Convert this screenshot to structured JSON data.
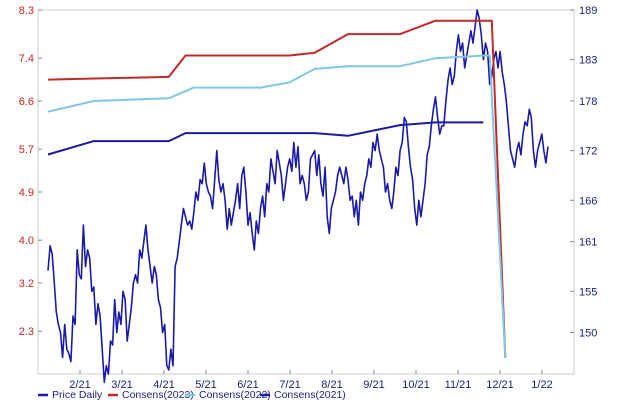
{
  "chart_data": {
    "type": "line",
    "title": "",
    "x_tick_labels": [
      "2/21",
      "3/21",
      "4/21",
      "5/21",
      "6/21",
      "7/21",
      "8/21",
      "9/21",
      "10/21",
      "11/21",
      "12/21",
      "1/22"
    ],
    "left_axis": {
      "ticks": [
        "8.3",
        "7.4",
        "6.6",
        "5.7",
        "4.9",
        "4.0",
        "3.2",
        "2.3"
      ],
      "ylim": [
        1.5,
        8.3
      ]
    },
    "right_axis": {
      "ticks": [
        "189",
        "183",
        "178",
        "172",
        "166",
        "161",
        "155",
        "150"
      ],
      "ylim": [
        145,
        189
      ]
    },
    "grid": false,
    "legend_position": "bottom",
    "series": [
      {
        "name": "Price Daily",
        "axis": "right",
        "color": "#1a1aa6",
        "points": [
          [
            0.0,
            157.5
          ],
          [
            0.01,
            160.5
          ],
          [
            0.02,
            159.5
          ],
          [
            0.03,
            156
          ],
          [
            0.04,
            152.5
          ],
          [
            0.05,
            151
          ],
          [
            0.06,
            150
          ],
          [
            0.07,
            147
          ],
          [
            0.08,
            151
          ],
          [
            0.09,
            148
          ],
          [
            0.1,
            147.5
          ],
          [
            0.11,
            146.5
          ],
          [
            0.12,
            152
          ],
          [
            0.13,
            151
          ],
          [
            0.14,
            160
          ],
          [
            0.15,
            157
          ],
          [
            0.16,
            156.5
          ],
          [
            0.17,
            163
          ],
          [
            0.18,
            158
          ],
          [
            0.19,
            160
          ],
          [
            0.2,
            159
          ],
          [
            0.21,
            155
          ],
          [
            0.22,
            155.5
          ],
          [
            0.23,
            151
          ],
          [
            0.24,
            153.5
          ],
          [
            0.25,
            152
          ],
          [
            0.26,
            148
          ],
          [
            0.27,
            144
          ],
          [
            0.28,
            146
          ],
          [
            0.29,
            145
          ],
          [
            0.3,
            149
          ],
          [
            0.31,
            148.5
          ],
          [
            0.32,
            154
          ],
          [
            0.33,
            150
          ],
          [
            0.34,
            152.5
          ],
          [
            0.35,
            151
          ],
          [
            0.36,
            155
          ],
          [
            0.37,
            154
          ],
          [
            0.38,
            149
          ],
          [
            0.39,
            151
          ],
          [
            0.4,
            153
          ],
          [
            0.41,
            156
          ],
          [
            0.42,
            157
          ],
          [
            0.43,
            156
          ],
          [
            0.44,
            160
          ],
          [
            0.45,
            159
          ],
          [
            0.46,
            161
          ],
          [
            0.47,
            163
          ],
          [
            0.48,
            160
          ],
          [
            0.49,
            158
          ],
          [
            0.5,
            156
          ],
          [
            0.51,
            158
          ],
          [
            0.52,
            157
          ],
          [
            0.53,
            154
          ],
          [
            0.54,
            153
          ],
          [
            0.55,
            150
          ],
          [
            0.56,
            151
          ],
          [
            0.57,
            146
          ],
          [
            0.58,
            145.5
          ],
          [
            0.59,
            148
          ],
          [
            0.6,
            146
          ],
          [
            0.61,
            158
          ],
          [
            0.62,
            159
          ],
          [
            0.63,
            161
          ],
          [
            0.64,
            163
          ],
          [
            0.65,
            165
          ],
          [
            0.66,
            164
          ],
          [
            0.67,
            163
          ],
          [
            0.68,
            163.5
          ],
          [
            0.69,
            162.5
          ],
          [
            0.7,
            164.5
          ],
          [
            0.71,
            167
          ],
          [
            0.72,
            166
          ],
          [
            0.73,
            168.5
          ],
          [
            0.74,
            168
          ],
          [
            0.75,
            170.5
          ],
          [
            0.76,
            168
          ],
          [
            0.77,
            167
          ],
          [
            0.78,
            166.5
          ],
          [
            0.79,
            165
          ],
          [
            0.8,
            168.5
          ],
          [
            0.81,
            172
          ],
          [
            0.82,
            168.5
          ],
          [
            0.83,
            167
          ],
          [
            0.84,
            168
          ],
          [
            0.85,
            166
          ],
          [
            0.86,
            162.5
          ],
          [
            0.87,
            165
          ],
          [
            0.88,
            163
          ],
          [
            0.89,
            164.5
          ],
          [
            0.9,
            166
          ],
          [
            0.91,
            168
          ],
          [
            0.92,
            165
          ],
          [
            0.93,
            169
          ],
          [
            0.94,
            170
          ],
          [
            0.95,
            167
          ],
          [
            0.96,
            163
          ],
          [
            0.97,
            164.5
          ],
          [
            0.98,
            162
          ],
          [
            0.99,
            160
          ],
          [
            1.0,
            163.5
          ],
          [
            1.01,
            162
          ],
          [
            1.02,
            165
          ],
          [
            1.03,
            166.5
          ],
          [
            1.04,
            164
          ],
          [
            1.05,
            168
          ],
          [
            1.06,
            167
          ],
          [
            1.07,
            171
          ],
          [
            1.08,
            169.5
          ],
          [
            1.09,
            168
          ],
          [
            1.1,
            172
          ],
          [
            1.11,
            170.5
          ],
          [
            1.12,
            169
          ],
          [
            1.13,
            166
          ],
          [
            1.14,
            168
          ],
          [
            1.15,
            170
          ],
          [
            1.16,
            171
          ],
          [
            1.17,
            169.5
          ],
          [
            1.18,
            173
          ],
          [
            1.19,
            170
          ],
          [
            1.2,
            172.5
          ],
          [
            1.21,
            168
          ],
          [
            1.22,
            169
          ],
          [
            1.23,
            168
          ],
          [
            1.24,
            166
          ],
          [
            1.25,
            167
          ],
          [
            1.26,
            171
          ],
          [
            1.27,
            171.5
          ],
          [
            1.28,
            172
          ],
          [
            1.29,
            169
          ],
          [
            1.3,
            171.5
          ],
          [
            1.31,
            168
          ],
          [
            1.32,
            166.5
          ],
          [
            1.33,
            170
          ],
          [
            1.34,
            164
          ],
          [
            1.35,
            162
          ],
          [
            1.36,
            165
          ],
          [
            1.37,
            166
          ],
          [
            1.38,
            167
          ],
          [
            1.39,
            169
          ],
          [
            1.4,
            170
          ],
          [
            1.41,
            169
          ],
          [
            1.42,
            168
          ],
          [
            1.43,
            170
          ],
          [
            1.44,
            168.5
          ],
          [
            1.45,
            166
          ],
          [
            1.46,
            166.5
          ],
          [
            1.47,
            164
          ],
          [
            1.48,
            166
          ],
          [
            1.49,
            163
          ],
          [
            1.5,
            167
          ],
          [
            1.51,
            166
          ],
          [
            1.52,
            168
          ],
          [
            1.53,
            169
          ],
          [
            1.54,
            171
          ],
          [
            1.55,
            170
          ],
          [
            1.56,
            173
          ],
          [
            1.57,
            172
          ],
          [
            1.58,
            174
          ],
          [
            1.59,
            172
          ],
          [
            1.6,
            171
          ],
          [
            1.61,
            170
          ],
          [
            1.62,
            167
          ],
          [
            1.63,
            168
          ],
          [
            1.64,
            166
          ],
          [
            1.65,
            165
          ],
          [
            1.66,
            167
          ],
          [
            1.67,
            170
          ],
          [
            1.68,
            169
          ],
          [
            1.69,
            172
          ],
          [
            1.7,
            173
          ],
          [
            1.71,
            176
          ],
          [
            1.72,
            175.5
          ],
          [
            1.73,
            172.5
          ],
          [
            1.74,
            170
          ],
          [
            1.75,
            168.5
          ],
          [
            1.76,
            165
          ],
          [
            1.77,
            163
          ],
          [
            1.78,
            166
          ],
          [
            1.79,
            164
          ],
          [
            1.8,
            166
          ],
          [
            1.81,
            168
          ],
          [
            1.82,
            171.5
          ],
          [
            1.83,
            172.5
          ],
          [
            1.84,
            175
          ],
          [
            1.85,
            177
          ],
          [
            1.86,
            178.5
          ],
          [
            1.87,
            176
          ],
          [
            1.88,
            174
          ],
          [
            1.89,
            175
          ],
          [
            1.9,
            175
          ],
          [
            1.91,
            178
          ],
          [
            1.92,
            180.5
          ],
          [
            1.93,
            182
          ],
          [
            1.94,
            180
          ],
          [
            1.95,
            181
          ],
          [
            1.96,
            184
          ],
          [
            1.97,
            186
          ],
          [
            1.98,
            184
          ],
          [
            1.99,
            185
          ],
          [
            2.0,
            182
          ],
          [
            2.01,
            183.5
          ],
          [
            2.02,
            185
          ],
          [
            2.03,
            186.5
          ],
          [
            2.04,
            185
          ],
          [
            2.05,
            187
          ],
          [
            2.06,
            189
          ],
          [
            2.07,
            188
          ],
          [
            2.08,
            186
          ],
          [
            2.09,
            183
          ],
          [
            2.1,
            185
          ],
          [
            2.11,
            184
          ],
          [
            2.12,
            180
          ],
          [
            2.13,
            181
          ],
          [
            2.14,
            183
          ],
          [
            2.15,
            184
          ],
          [
            2.16,
            182
          ],
          [
            2.17,
            184
          ],
          [
            2.18,
            181.5
          ],
          [
            2.19,
            180
          ],
          [
            2.2,
            178
          ],
          [
            2.21,
            175
          ],
          [
            2.22,
            172
          ],
          [
            2.23,
            171
          ],
          [
            2.24,
            170
          ],
          [
            2.25,
            172
          ],
          [
            2.26,
            173
          ],
          [
            2.27,
            171.5
          ],
          [
            2.28,
            174
          ],
          [
            2.29,
            175.5
          ],
          [
            2.3,
            175
          ],
          [
            2.31,
            177
          ],
          [
            2.32,
            176
          ],
          [
            2.33,
            172
          ],
          [
            2.34,
            170
          ],
          [
            2.35,
            172
          ],
          [
            2.36,
            173
          ],
          [
            2.37,
            174
          ],
          [
            2.38,
            172
          ],
          [
            2.39,
            170.5
          ],
          [
            2.4,
            172.5
          ]
        ]
      },
      {
        "name": "Consens(2023)",
        "axis": "left",
        "color": "#c62828",
        "points": [
          [
            0,
            7.0
          ],
          [
            0.58,
            7.05
          ],
          [
            0.66,
            7.45
          ],
          [
            1.16,
            7.45
          ],
          [
            1.28,
            7.5
          ],
          [
            1.44,
            7.85
          ],
          [
            1.69,
            7.85
          ],
          [
            1.86,
            8.1
          ],
          [
            2.08,
            8.1
          ],
          [
            2.13,
            8.1
          ],
          [
            2.195,
            1.8
          ]
        ]
      },
      {
        "name": "Consens(2022)",
        "axis": "left",
        "color": "#7ec8e3",
        "points": [
          [
            0,
            6.4
          ],
          [
            0.22,
            6.6
          ],
          [
            0.58,
            6.65
          ],
          [
            0.7,
            6.85
          ],
          [
            1.02,
            6.85
          ],
          [
            1.16,
            6.95
          ],
          [
            1.28,
            7.2
          ],
          [
            1.44,
            7.25
          ],
          [
            1.69,
            7.25
          ],
          [
            1.86,
            7.4
          ],
          [
            2.1,
            7.45
          ],
          [
            2.12,
            7.45
          ],
          [
            2.195,
            1.8
          ]
        ]
      },
      {
        "name": "Consens(2021)",
        "axis": "left",
        "color": "#1a1aa6",
        "points": [
          [
            0,
            5.6
          ],
          [
            0.22,
            5.85
          ],
          [
            0.58,
            5.85
          ],
          [
            0.66,
            6.0
          ],
          [
            1.16,
            6.0
          ],
          [
            1.28,
            6.0
          ],
          [
            1.44,
            5.95
          ],
          [
            1.69,
            6.15
          ],
          [
            1.86,
            6.2
          ],
          [
            2.09,
            6.2
          ]
        ]
      }
    ]
  }
}
